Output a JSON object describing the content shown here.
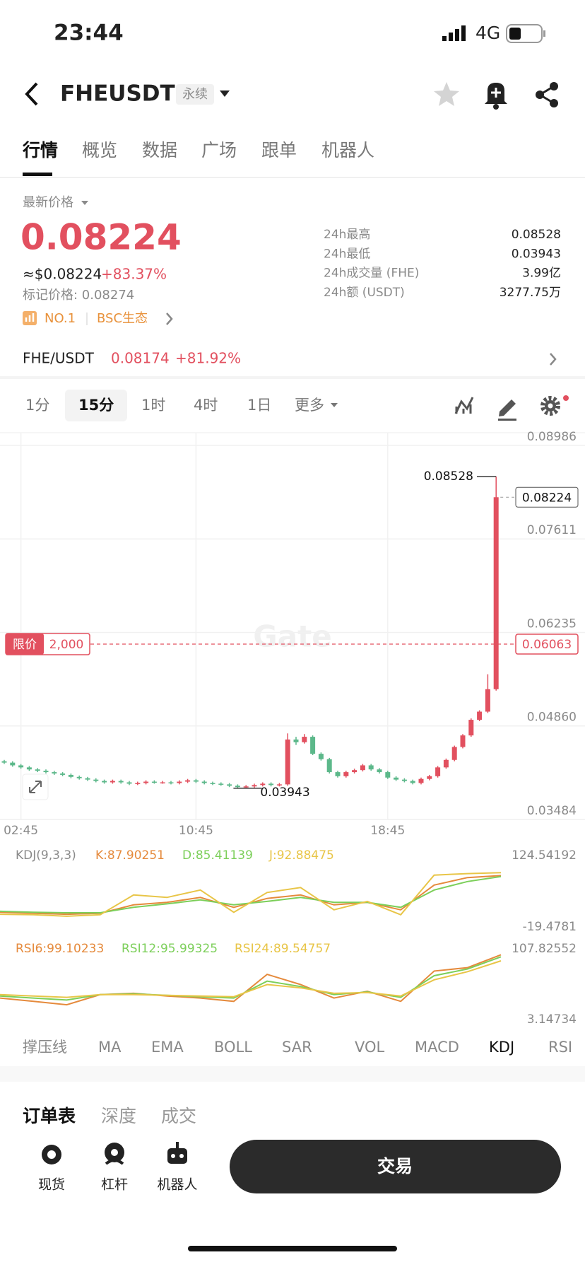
{
  "status_bar": {
    "time": "23:44",
    "network": "4G"
  },
  "header": {
    "symbol": "FHEUSDT",
    "badge": "永续"
  },
  "tabs": [
    "行情",
    "概览",
    "数据",
    "广场",
    "跟单",
    "机器人"
  ],
  "ticker": {
    "latest_label": "最新价格",
    "price": "0.08224",
    "usd_price": "≈$0.08224",
    "change": "+83.37%",
    "mark_price": "标记价格: 0.08274",
    "rank": "NO.1",
    "tag": "BSC生态",
    "stats": [
      [
        "24h最高",
        "0.08528"
      ],
      [
        "24h最低",
        "0.03943"
      ],
      [
        "24h成交量 (FHE)",
        "3.99亿"
      ],
      [
        "24h额 (USDT)",
        "3277.75万"
      ]
    ]
  },
  "spot": {
    "pair": "FHE/USDT",
    "price": "0.08174",
    "change": "+81.92%"
  },
  "timeframes": [
    "1分",
    "15分",
    "1时",
    "4时",
    "1日",
    "更多"
  ],
  "chart_data": {
    "type": "candlestick",
    "watermark": "Gate",
    "x": [
      null,
      null,
      "02:45",
      null,
      null,
      null,
      null,
      null,
      null,
      null,
      null,
      null,
      null,
      null,
      null,
      null,
      null,
      null,
      null,
      null,
      null,
      null,
      null,
      "10:45",
      null,
      null,
      null,
      null,
      null,
      null,
      null,
      null,
      null,
      null,
      null,
      null,
      null,
      null,
      null,
      null,
      null,
      null,
      null,
      null,
      null,
      null,
      "18:45",
      null,
      null,
      null,
      null,
      null,
      null,
      null,
      null,
      null,
      null,
      null,
      null,
      null
    ],
    "candles": [
      [
        0.0434,
        0.0436,
        0.043,
        0.0432
      ],
      [
        0.0432,
        0.0434,
        0.0426,
        0.0428
      ],
      [
        0.0428,
        0.043,
        0.0423,
        0.0425
      ],
      [
        0.0425,
        0.0427,
        0.042,
        0.0422
      ],
      [
        0.0422,
        0.0424,
        0.0418,
        0.042
      ],
      [
        0.042,
        0.0422,
        0.0416,
        0.0418
      ],
      [
        0.0418,
        0.042,
        0.0414,
        0.0416
      ],
      [
        0.0416,
        0.0418,
        0.0412,
        0.0414
      ],
      [
        0.0414,
        0.0416,
        0.0409,
        0.0411
      ],
      [
        0.0411,
        0.0413,
        0.0407,
        0.0409
      ],
      [
        0.0409,
        0.0411,
        0.0405,
        0.0407
      ],
      [
        0.0407,
        0.0409,
        0.0403,
        0.0405
      ],
      [
        0.0405,
        0.0407,
        0.0401,
        0.0403
      ],
      [
        0.0403,
        0.0407,
        0.0401,
        0.0405
      ],
      [
        0.0405,
        0.0407,
        0.0401,
        0.0403
      ],
      [
        0.0403,
        0.0405,
        0.0399,
        0.0401
      ],
      [
        0.0401,
        0.0404,
        0.0399,
        0.0402
      ],
      [
        0.0402,
        0.0406,
        0.04,
        0.0404
      ],
      [
        0.0404,
        0.0406,
        0.0401,
        0.0403
      ],
      [
        0.0403,
        0.0405,
        0.0401,
        0.0403
      ],
      [
        0.0403,
        0.0405,
        0.04,
        0.0402
      ],
      [
        0.0402,
        0.0406,
        0.04,
        0.0404
      ],
      [
        0.0404,
        0.0408,
        0.0402,
        0.0406
      ],
      [
        0.0406,
        0.0408,
        0.0402,
        0.0404
      ],
      [
        0.0404,
        0.0406,
        0.04,
        0.0402
      ],
      [
        0.0402,
        0.0404,
        0.0399,
        0.0401
      ],
      [
        0.0401,
        0.0403,
        0.0398,
        0.04
      ],
      [
        0.04,
        0.0402,
        0.0396,
        0.0398
      ],
      [
        0.0398,
        0.04,
        0.03943,
        0.0396
      ],
      [
        0.0396,
        0.0399,
        0.0395,
        0.0397
      ],
      [
        0.0397,
        0.0401,
        0.0395,
        0.0399
      ],
      [
        0.0399,
        0.0403,
        0.0397,
        0.0401
      ],
      [
        0.0401,
        0.0403,
        0.0397,
        0.0399
      ],
      [
        0.0399,
        0.0402,
        0.0397,
        0.04
      ],
      [
        0.04,
        0.0475,
        0.0398,
        0.0466
      ],
      [
        0.0466,
        0.047,
        0.0458,
        0.0462
      ],
      [
        0.0462,
        0.0474,
        0.046,
        0.047
      ],
      [
        0.047,
        0.0472,
        0.0443,
        0.0445
      ],
      [
        0.0445,
        0.0447,
        0.0435,
        0.0437
      ],
      [
        0.0437,
        0.0439,
        0.0416,
        0.0418
      ],
      [
        0.0418,
        0.042,
        0.041,
        0.0412
      ],
      [
        0.0412,
        0.042,
        0.041,
        0.0418
      ],
      [
        0.0418,
        0.0423,
        0.0416,
        0.0421
      ],
      [
        0.0421,
        0.043,
        0.0419,
        0.0428
      ],
      [
        0.0428,
        0.043,
        0.042,
        0.0422
      ],
      [
        0.0422,
        0.0424,
        0.0416,
        0.0418
      ],
      [
        0.0418,
        0.042,
        0.0408,
        0.041
      ],
      [
        0.041,
        0.0412,
        0.0405,
        0.0407
      ],
      [
        0.0407,
        0.0409,
        0.0403,
        0.0405
      ],
      [
        0.0405,
        0.0407,
        0.04,
        0.0402
      ],
      [
        0.0402,
        0.041,
        0.04,
        0.0408
      ],
      [
        0.0408,
        0.0414,
        0.0406,
        0.0412
      ],
      [
        0.0412,
        0.0427,
        0.041,
        0.0425
      ],
      [
        0.0425,
        0.0438,
        0.0423,
        0.0436
      ],
      [
        0.0436,
        0.0457,
        0.0434,
        0.0455
      ],
      [
        0.0455,
        0.0474,
        0.0453,
        0.0472
      ],
      [
        0.0472,
        0.0497,
        0.047,
        0.0495
      ],
      [
        0.0495,
        0.0509,
        0.0493,
        0.0507
      ],
      [
        0.0507,
        0.0562,
        0.0505,
        0.054
      ],
      [
        0.054,
        0.08528,
        0.0538,
        0.08224
      ]
    ],
    "up_color": "#e2505f",
    "down_color": "#5cb88a",
    "ylim": [
      0.03484,
      0.08986
    ],
    "yticks": [
      0.03484,
      {
        "value": 0.0486,
        "label": "0.04860"
      },
      0.06235,
      0.07611,
      0.08986
    ],
    "grid": true,
    "high": 0.08528,
    "low": 0.03943,
    "last_price": 0.08224,
    "limit": {
      "label": "限价",
      "quantity": "2,000",
      "price": 0.06063
    },
    "kdj": {
      "title": "KDJ(9,3,3)",
      "ylim": [
        -19.4781,
        124.54192
      ],
      "yticks": [
        -19.4781,
        124.54192
      ],
      "series": [
        {
          "name": "K:87.90251",
          "color": "#e58a3c",
          "values": [
            10,
            8,
            6,
            8,
            25,
            30,
            40,
            20,
            38,
            45,
            25,
            30,
            15,
            65,
            80,
            84
          ]
        },
        {
          "name": "D:85.41139",
          "color": "#7ccf5a",
          "values": [
            12,
            10,
            9,
            9,
            20,
            27,
            35,
            25,
            32,
            40,
            30,
            30,
            20,
            55,
            72,
            82
          ]
        },
        {
          "name": "J:92.88475",
          "color": "#e8c547",
          "values": [
            6,
            5,
            2,
            5,
            45,
            40,
            55,
            10,
            50,
            60,
            15,
            32,
            5,
            85,
            88,
            90
          ]
        }
      ]
    },
    "rsi": {
      "ylim": [
        3.14734,
        107.82552
      ],
      "yticks": [
        3.14734,
        107.82552
      ],
      "series": [
        {
          "name": "RSI6:99.10233",
          "color": "#e58a3c",
          "values": [
            35,
            30,
            25,
            40,
            42,
            38,
            35,
            30,
            70,
            55,
            35,
            45,
            30,
            75,
            80,
            99
          ]
        },
        {
          "name": "RSI12:95.99325",
          "color": "#7ccf5a",
          "values": [
            38,
            35,
            32,
            40,
            41,
            39,
            37,
            35,
            60,
            52,
            40,
            44,
            36,
            68,
            78,
            96
          ]
        },
        {
          "name": "RSI24:89.54757",
          "color": "#e8c547",
          "values": [
            40,
            38,
            36,
            40,
            40,
            39,
            38,
            37,
            55,
            50,
            42,
            43,
            38,
            62,
            74,
            90
          ]
        }
      ]
    }
  },
  "indicator_tabs": [
    "撑压线",
    "MA",
    "EMA",
    "BOLL",
    "SAR",
    "VOL",
    "MACD",
    "KDJ",
    "RSI"
  ],
  "order_tabs": [
    "订单表",
    "深度",
    "成交"
  ],
  "bottom_nav": [
    "现货",
    "杠杆",
    "机器人"
  ],
  "trade_button": "交易"
}
